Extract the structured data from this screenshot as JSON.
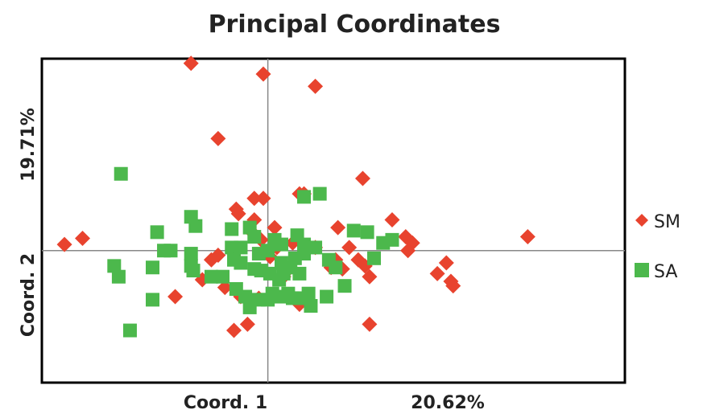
{
  "chart_data": {
    "type": "scatter",
    "title": "Principal Coordinates",
    "xlabel": "Coord. 1",
    "xlabel_pct": "20.62%",
    "ylabel": "Coord. 2",
    "ylabel_pct": "19.71%",
    "xlim": [
      -1.0,
      1.58
    ],
    "ylim": [
      -0.86,
      1.25
    ],
    "origin_lines": true,
    "grid": false,
    "legend_position": "right",
    "series": [
      {
        "name": "SM",
        "marker": "diamond",
        "color": "#e8432e",
        "points": [
          [
            -0.9,
            0.04
          ],
          [
            -0.82,
            0.08
          ],
          [
            -0.34,
            1.22
          ],
          [
            -0.02,
            1.15
          ],
          [
            0.21,
            1.07
          ],
          [
            -0.22,
            0.73
          ],
          [
            0.42,
            0.47
          ],
          [
            -0.06,
            0.34
          ],
          [
            -0.02,
            0.34
          ],
          [
            0.14,
            0.37
          ],
          [
            0.16,
            0.37
          ],
          [
            -0.14,
            0.27
          ],
          [
            -0.13,
            0.24
          ],
          [
            -0.06,
            0.2
          ],
          [
            0.03,
            0.15
          ],
          [
            0.21,
            0.02
          ],
          [
            0.36,
            0.02
          ],
          [
            0.55,
            0.2
          ],
          [
            0.61,
            0.09
          ],
          [
            0.64,
            0.05
          ],
          [
            0.62,
            0.0
          ],
          [
            0.3,
            -0.06
          ],
          [
            0.4,
            -0.06
          ],
          [
            0.43,
            -0.1
          ],
          [
            0.45,
            -0.17
          ],
          [
            0.33,
            -0.12
          ],
          [
            0.79,
            -0.08
          ],
          [
            0.75,
            -0.15
          ],
          [
            0.81,
            -0.2
          ],
          [
            0.82,
            -0.23
          ],
          [
            1.15,
            0.09
          ],
          [
            -0.25,
            -0.06
          ],
          [
            -0.22,
            -0.03
          ],
          [
            -0.29,
            -0.19
          ],
          [
            -0.41,
            -0.3
          ],
          [
            -0.19,
            -0.24
          ],
          [
            -0.12,
            -0.3
          ],
          [
            -0.04,
            -0.31
          ],
          [
            0.02,
            -0.31
          ],
          [
            0.14,
            -0.35
          ],
          [
            0.17,
            -0.29
          ],
          [
            -0.15,
            -0.52
          ],
          [
            -0.09,
            -0.48
          ],
          [
            0.45,
            -0.48
          ],
          [
            0.07,
            -0.17
          ],
          [
            0.1,
            -0.11
          ],
          [
            0.28,
            -0.11
          ],
          [
            0.04,
            0.02
          ],
          [
            0.11,
            0.05
          ],
          [
            -0.03,
            0.07
          ],
          [
            0.01,
            -0.04
          ],
          [
            0.31,
            0.15
          ],
          [
            -0.07,
            0.12
          ]
        ]
      },
      {
        "name": "SA",
        "marker": "square",
        "color": "#4cb84c",
        "points": [
          [
            -0.65,
            0.5
          ],
          [
            -0.34,
            0.22
          ],
          [
            -0.32,
            0.16
          ],
          [
            -0.49,
            0.12
          ],
          [
            -0.46,
            0.0
          ],
          [
            -0.43,
            0.0
          ],
          [
            -0.68,
            -0.1
          ],
          [
            -0.66,
            -0.17
          ],
          [
            -0.51,
            -0.11
          ],
          [
            -0.34,
            -0.1
          ],
          [
            -0.33,
            -0.13
          ],
          [
            -0.34,
            -0.02
          ],
          [
            -0.16,
            0.14
          ],
          [
            -0.08,
            0.15
          ],
          [
            -0.06,
            0.09
          ],
          [
            -0.16,
            0.02
          ],
          [
            -0.12,
            0.02
          ],
          [
            -0.15,
            -0.06
          ],
          [
            -0.12,
            -0.08
          ],
          [
            -0.06,
            -0.12
          ],
          [
            -0.03,
            -0.13
          ],
          [
            0.01,
            -0.15
          ],
          [
            0.05,
            -0.19
          ],
          [
            0.07,
            -0.15
          ],
          [
            -0.2,
            -0.17
          ],
          [
            -0.25,
            -0.17
          ],
          [
            -0.14,
            -0.25
          ],
          [
            -0.1,
            -0.3
          ],
          [
            -0.08,
            -0.37
          ],
          [
            -0.04,
            -0.32
          ],
          [
            0.0,
            -0.32
          ],
          [
            0.02,
            -0.28
          ],
          [
            0.06,
            -0.3
          ],
          [
            0.09,
            -0.28
          ],
          [
            0.11,
            -0.31
          ],
          [
            0.15,
            -0.31
          ],
          [
            0.18,
            -0.28
          ],
          [
            0.19,
            -0.36
          ],
          [
            0.26,
            -0.3
          ],
          [
            0.03,
            0.07
          ],
          [
            0.06,
            0.04
          ],
          [
            0.13,
            0.1
          ],
          [
            0.16,
            0.04
          ],
          [
            0.21,
            0.02
          ],
          [
            0.16,
            -0.02
          ],
          [
            0.12,
            -0.05
          ],
          [
            0.06,
            -0.08
          ],
          [
            0.1,
            -0.11
          ],
          [
            0.14,
            -0.15
          ],
          [
            0.27,
            -0.06
          ],
          [
            0.3,
            -0.11
          ],
          [
            0.0,
            0.0
          ],
          [
            -0.04,
            -0.02
          ],
          [
            0.16,
            0.35
          ],
          [
            0.23,
            0.37
          ],
          [
            0.38,
            0.13
          ],
          [
            0.51,
            0.05
          ],
          [
            0.55,
            0.07
          ],
          [
            0.47,
            -0.05
          ],
          [
            0.34,
            -0.23
          ],
          [
            -0.51,
            -0.32
          ],
          [
            -0.61,
            -0.52
          ],
          [
            0.44,
            0.12
          ]
        ]
      }
    ]
  }
}
